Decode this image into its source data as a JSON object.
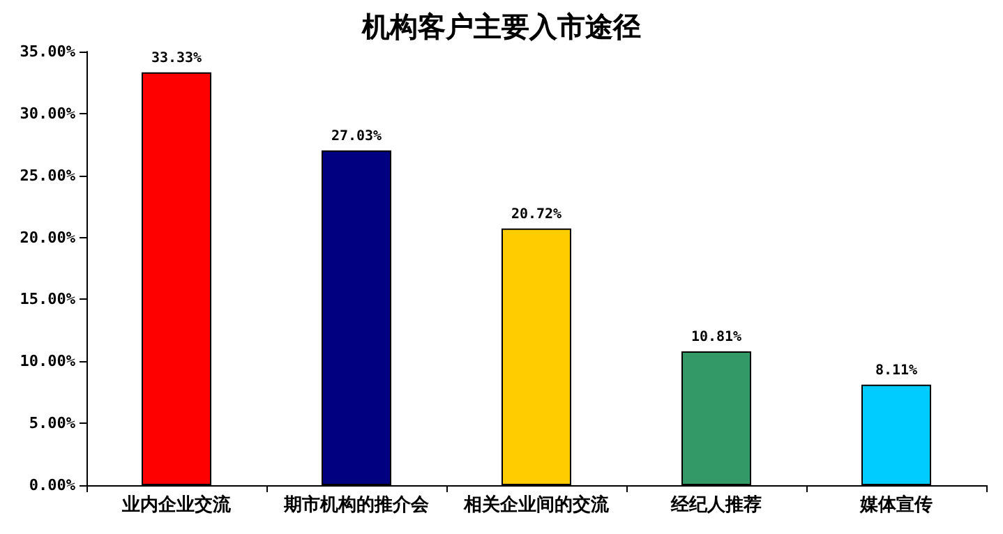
{
  "chart_data": {
    "type": "bar",
    "title": "机构客户主要入市途径",
    "categories": [
      "业内企业交流",
      "期市机构的推介会",
      "相关企业间的交流",
      "经纪人推荐",
      "媒体宣传"
    ],
    "values": [
      33.33,
      27.03,
      20.72,
      10.81,
      8.11
    ],
    "colors": [
      "#ff0000",
      "#000080",
      "#ffcc00",
      "#339966",
      "#00ccff"
    ],
    "value_labels": [
      "33.33%",
      "27.03%",
      "20.72%",
      "10.81%",
      "8.11%"
    ],
    "ylim": [
      0,
      35
    ],
    "yticks": [
      {
        "value": 0,
        "label": "0.00%"
      },
      {
        "value": 5,
        "label": "5.00%"
      },
      {
        "value": 10,
        "label": "10.00%"
      },
      {
        "value": 15,
        "label": "15.00%"
      },
      {
        "value": 20,
        "label": "20.00%"
      },
      {
        "value": 25,
        "label": "25.00%"
      },
      {
        "value": 30,
        "label": "30.00%"
      },
      {
        "value": 35,
        "label": "35.00%"
      }
    ],
    "grid": false
  }
}
